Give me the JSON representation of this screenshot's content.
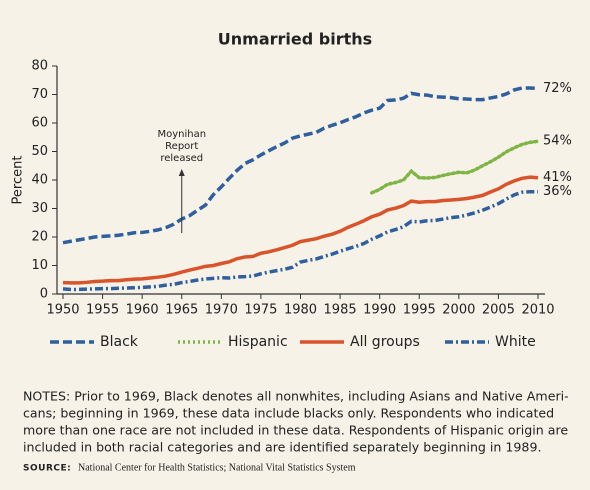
{
  "chart_data": {
    "type": "line",
    "title": "Unmarried births",
    "y_label": "Percent",
    "x": [
      1950,
      1951,
      1952,
      1953,
      1954,
      1955,
      1956,
      1957,
      1958,
      1959,
      1960,
      1961,
      1962,
      1963,
      1964,
      1965,
      1966,
      1967,
      1968,
      1969,
      1970,
      1971,
      1972,
      1973,
      1974,
      1975,
      1976,
      1977,
      1978,
      1979,
      1980,
      1981,
      1982,
      1983,
      1984,
      1985,
      1986,
      1987,
      1988,
      1989,
      1990,
      1991,
      1992,
      1993,
      1994,
      1995,
      1996,
      1997,
      1998,
      1999,
      2000,
      2001,
      2002,
      2003,
      2004,
      2005,
      2006,
      2007,
      2008,
      2009,
      2010
    ],
    "xlim": [
      1950,
      2010
    ],
    "xticks": [
      1950,
      1955,
      1960,
      1965,
      1970,
      1975,
      1980,
      1985,
      1990,
      1995,
      2000,
      2005,
      2010
    ],
    "ylim": [
      0,
      80
    ],
    "yticks": [
      0,
      10,
      20,
      30,
      40,
      50,
      60,
      70,
      80
    ],
    "grid": false,
    "series": [
      {
        "name": "Black",
        "color": "#2f5f9e",
        "style": "dashed",
        "values": [
          18,
          18.5,
          19,
          19.5,
          20,
          20.2,
          20.4,
          20.6,
          21,
          21.5,
          21.6,
          22,
          22.5,
          23.3,
          24.5,
          26.3,
          27.5,
          29.4,
          31.2,
          34.9,
          37.6,
          40.6,
          43.4,
          45.8,
          47.1,
          48.8,
          50.3,
          51.7,
          53,
          54.7,
          55.5,
          56.1,
          56.7,
          58.2,
          59.2,
          60.1,
          61.2,
          62.2,
          63.5,
          64.5,
          65.2,
          67.9,
          68.1,
          68.7,
          70.4,
          69.9,
          69.8,
          69.2,
          69.1,
          68.9,
          68.5,
          68.4,
          68.2,
          68.2,
          68.8,
          69.3,
          70.2,
          71.6,
          72.3,
          72.3,
          72.1
        ],
        "value_labels": [
          null,
          null,
          null,
          null,
          null,
          null,
          null,
          null,
          null,
          null,
          null,
          null,
          null,
          null,
          null,
          null,
          null,
          null,
          null,
          null,
          null,
          null,
          null,
          null,
          null,
          null,
          null,
          null,
          null,
          null,
          null,
          null,
          null,
          null,
          null,
          null,
          null,
          null,
          null,
          null,
          null,
          null,
          null,
          null,
          null,
          null,
          null,
          null,
          null,
          null,
          null,
          null,
          null,
          null,
          null,
          null,
          null,
          null,
          null,
          null,
          "72%"
        ]
      },
      {
        "name": "Hispanic",
        "color": "#7fb545",
        "style": "dotted",
        "values": [
          null,
          null,
          null,
          null,
          null,
          null,
          null,
          null,
          null,
          null,
          null,
          null,
          null,
          null,
          null,
          null,
          null,
          null,
          null,
          null,
          null,
          null,
          null,
          null,
          null,
          null,
          null,
          null,
          null,
          null,
          null,
          null,
          null,
          null,
          null,
          null,
          null,
          null,
          null,
          35.5,
          36.7,
          38.5,
          39.1,
          40,
          43.1,
          40.8,
          40.7,
          40.9,
          41.6,
          42.2,
          42.7,
          42.5,
          43.5,
          45,
          46.4,
          48,
          49.9,
          51.3,
          52.5,
          53.2,
          53.6
        ],
        "value_labels": [
          null,
          null,
          null,
          null,
          null,
          null,
          null,
          null,
          null,
          null,
          null,
          null,
          null,
          null,
          null,
          null,
          null,
          null,
          null,
          null,
          null,
          null,
          null,
          null,
          null,
          null,
          null,
          null,
          null,
          null,
          null,
          null,
          null,
          null,
          null,
          null,
          null,
          null,
          null,
          null,
          null,
          null,
          null,
          null,
          null,
          null,
          null,
          null,
          null,
          null,
          null,
          null,
          null,
          null,
          null,
          null,
          null,
          null,
          null,
          null,
          "54%"
        ]
      },
      {
        "name": "All groups",
        "color": "#d9532b",
        "style": "solid",
        "values": [
          4,
          3.9,
          3.9,
          4.1,
          4.4,
          4.5,
          4.7,
          4.7,
          5,
          5.2,
          5.3,
          5.6,
          5.9,
          6.3,
          6.9,
          7.7,
          8.4,
          9,
          9.7,
          10,
          10.7,
          11.3,
          12.4,
          13,
          13.2,
          14.3,
          14.8,
          15.5,
          16.3,
          17.1,
          18.4,
          18.9,
          19.4,
          20.3,
          21,
          22,
          23.4,
          24.5,
          25.7,
          27.1,
          28,
          29.5,
          30.1,
          31,
          32.6,
          32.2,
          32.4,
          32.4,
          32.8,
          33,
          33.2,
          33.5,
          34,
          34.6,
          35.8,
          36.9,
          38.5,
          39.7,
          40.6,
          41,
          40.8
        ],
        "value_labels": [
          null,
          null,
          null,
          null,
          null,
          null,
          null,
          null,
          null,
          null,
          null,
          null,
          null,
          null,
          null,
          null,
          null,
          null,
          null,
          null,
          null,
          null,
          null,
          null,
          null,
          null,
          null,
          null,
          null,
          null,
          null,
          null,
          null,
          null,
          null,
          null,
          null,
          null,
          null,
          null,
          null,
          null,
          null,
          null,
          null,
          null,
          null,
          null,
          null,
          null,
          null,
          null,
          null,
          null,
          null,
          null,
          null,
          null,
          null,
          null,
          "41%"
        ]
      },
      {
        "name": "White",
        "color": "#2f5f9e",
        "style": "dashdot",
        "values": [
          1.8,
          1.6,
          1.6,
          1.7,
          1.8,
          1.9,
          1.9,
          2,
          2.1,
          2.2,
          2.3,
          2.5,
          2.7,
          3.1,
          3.4,
          4,
          4.4,
          4.9,
          5.3,
          5.5,
          5.7,
          5.6,
          6,
          6.1,
          6.3,
          7.1,
          7.7,
          8.2,
          8.7,
          9.4,
          11.2,
          11.8,
          12.3,
          13.2,
          14,
          15,
          15.9,
          16.7,
          17.7,
          19.2,
          20.4,
          21.8,
          22.6,
          23.6,
          25.5,
          25.3,
          25.7,
          25.8,
          26.3,
          26.8,
          27.1,
          27.7,
          28.5,
          29.4,
          30.5,
          31.7,
          33.3,
          34.8,
          35.7,
          35.9,
          35.9
        ],
        "value_labels": [
          null,
          null,
          null,
          null,
          null,
          null,
          null,
          null,
          null,
          null,
          null,
          null,
          null,
          null,
          null,
          null,
          null,
          null,
          null,
          null,
          null,
          null,
          null,
          null,
          null,
          null,
          null,
          null,
          null,
          null,
          null,
          null,
          null,
          null,
          null,
          null,
          null,
          null,
          null,
          null,
          null,
          null,
          null,
          null,
          null,
          null,
          null,
          null,
          null,
          null,
          null,
          null,
          null,
          null,
          null,
          null,
          null,
          null,
          null,
          null,
          "36%"
        ]
      }
    ],
    "annotation": {
      "lines": [
        "Moynihan",
        "Report",
        "released"
      ],
      "x": 1965
    },
    "notes": [
      "NOTES: Prior to 1969, Black denotes all nonwhites, including Asians and Native Ameri-",
      "cans; beginning in 1969, these data include blacks only. Respondents who indicated",
      "more than one race are not included in these data. Respondents of Hispanic origin are",
      "included in both racial categories and are identified separately beginning in 1989."
    ],
    "source_label": "SOURCE:",
    "source": "National Center for Health Statistics; National Vital Statistics System"
  }
}
